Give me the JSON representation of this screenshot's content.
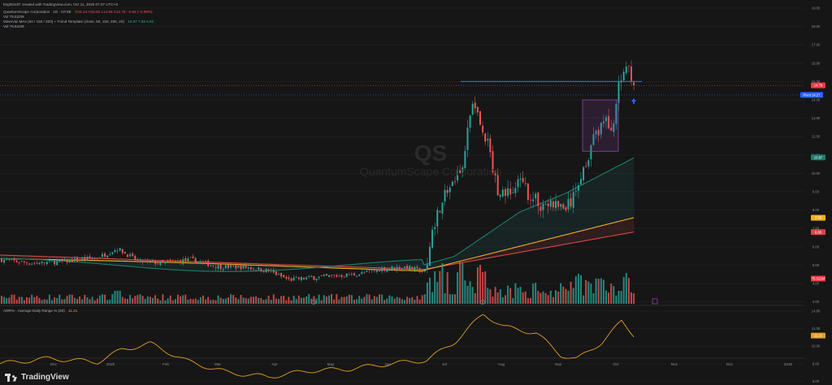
{
  "header": {
    "publisher": "brightim87 created with TradingView.com, Oct 11, 2025 07:37 UTC+9",
    "symbol_line": "QuantumScape Corporation · 1D · NYSE",
    "ohlc": "O15.14 H15.82 L14.56 C14.79 −0.95 (−5.98%)",
    "vol_line": "Vol 75.522M",
    "indicator_line": "Minervini MAs (50 / 150 / 200) + Trend Template (close, 50, 150, 200, 20)",
    "indicator_values": "10.87  7.58  6.80",
    "vol2_line": "Vol 75.522M"
  },
  "watermark": {
    "ticker": "QS",
    "name": "QuantumScape Corporation"
  },
  "price_axis": {
    "ticks": [
      "19.00",
      "18.00",
      "17.00",
      "16.00",
      "15.00",
      "14.00",
      "13.00",
      "12.00",
      "11.00",
      "10.00",
      "9.00",
      "8.00",
      "7.00",
      "6.00",
      "5.00",
      "4.00",
      "3.00"
    ],
    "badges": [
      {
        "text": "14.79",
        "color": "#f23645"
      },
      {
        "text": "Pivot  14.27",
        "color": "#2962ff"
      },
      {
        "text": "10.87",
        "color": "#1e7c6c"
      },
      {
        "text": "7.58",
        "color": "#f2b01e"
      },
      {
        "text": "6.80",
        "color": "#d34848"
      },
      {
        "text": "75.522M",
        "color": "#f23645"
      }
    ]
  },
  "adr_panel": {
    "title": "ADR% · Average Daily Range % (20)",
    "value": "11.21",
    "ticks": [
      "14.00",
      "12.00",
      "10.00",
      "8.00",
      "6.00",
      "4.00"
    ]
  },
  "time_axis": {
    "labels": [
      "Dec",
      "2025",
      "Feb",
      "Mar",
      "Apr",
      "May",
      "Jun",
      "Jul",
      "Aug",
      "Sep",
      "Oct",
      "Nov",
      "Dec",
      "2026"
    ]
  },
  "branding": {
    "logo": "TradingView"
  },
  "colors": {
    "up": "#26a69a",
    "down": "#ef5350",
    "pivot": "#2962ff",
    "ma50": "#1e7c6c",
    "ma150": "#f2b01e",
    "ma200": "#d34848",
    "box": "#8e44ad",
    "adr": "#e0a020"
  }
}
